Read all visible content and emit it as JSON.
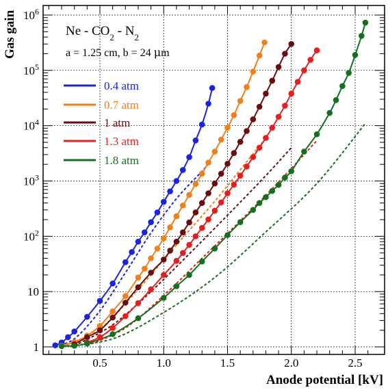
{
  "chart_data": {
    "type": "line",
    "title": "",
    "xlabel": "Anode potential [kV]",
    "ylabel": "Gas gain",
    "xlim": [
      0.05,
      2.65
    ],
    "ylim": [
      0.85,
      1300000
    ],
    "yscale": "log",
    "grid": true,
    "legend_position": "top-left",
    "x_ticks": [
      0.5,
      1.0,
      1.5,
      2.0,
      2.5
    ],
    "x_tick_labels": [
      "0.5",
      "1.0",
      "1.5",
      "2.0",
      "2.5"
    ],
    "y_ticks": [
      1,
      10,
      100,
      1000,
      10000,
      100000,
      1000000
    ],
    "y_tick_labels": [
      {
        "base": "1",
        "exp": ""
      },
      {
        "base": "10",
        "exp": ""
      },
      {
        "base": "10",
        "exp": "2"
      },
      {
        "base": "10",
        "exp": "3"
      },
      {
        "base": "10",
        "exp": "4"
      },
      {
        "base": "10",
        "exp": "5"
      },
      {
        "base": "10",
        "exp": "6"
      }
    ],
    "annotations": {
      "gas": {
        "pre": "Ne - CO",
        "sub1": "2",
        "mid": " - N",
        "sub2": "2"
      },
      "geometry": {
        "pre": "a = 1.25 cm, b = 24 ",
        "mu": "μ",
        "post": "m"
      }
    },
    "series": [
      {
        "name": "0.4 atm",
        "color": "#1a24e0",
        "x": [
          0.15,
          0.2,
          0.25,
          0.3,
          0.4,
          0.5,
          0.6,
          0.7,
          0.75,
          0.8,
          0.85,
          0.9,
          0.95,
          1.0,
          1.05,
          1.1,
          1.15,
          1.2,
          1.25,
          1.3,
          1.35,
          1.38
        ],
        "y": [
          1.07,
          1.2,
          1.5,
          1.9,
          3.5,
          6.8,
          14,
          34,
          52,
          80,
          118,
          180,
          270,
          420,
          650,
          1000,
          1580,
          2700,
          5400,
          10500,
          25000,
          48000
        ],
        "model_x": [
          0.15,
          0.3,
          0.5,
          0.7,
          0.9,
          1.1,
          1.3,
          1.37
        ],
        "model_y": [
          1.05,
          1.4,
          4.5,
          22,
          115,
          480,
          1500,
          2300
        ]
      },
      {
        "name": "0.7 atm",
        "color": "#f07f1c",
        "x": [
          0.2,
          0.3,
          0.4,
          0.5,
          0.6,
          0.7,
          0.8,
          0.85,
          0.9,
          0.95,
          1.0,
          1.05,
          1.1,
          1.15,
          1.2,
          1.25,
          1.3,
          1.35,
          1.4,
          1.45,
          1.5,
          1.55,
          1.6,
          1.65,
          1.7,
          1.75,
          1.79
        ],
        "y": [
          1.05,
          1.22,
          1.6,
          2.4,
          4.4,
          8.3,
          18,
          26,
          40,
          60,
          92,
          145,
          230,
          360,
          560,
          880,
          1350,
          2150,
          3400,
          5600,
          9200,
          15500,
          28000,
          50000,
          95000,
          185000,
          320000
        ],
        "model_x": [
          0.2,
          0.5,
          0.8,
          1.1,
          1.4,
          1.6,
          1.79
        ],
        "model_y": [
          1.05,
          2.1,
          11,
          70,
          430,
          1600,
          5600
        ]
      },
      {
        "name": "1 atm",
        "color": "#6b0d0d",
        "x": [
          0.3,
          0.4,
          0.5,
          0.6,
          0.7,
          0.8,
          0.9,
          1.0,
          1.05,
          1.1,
          1.15,
          1.2,
          1.25,
          1.3,
          1.35,
          1.4,
          1.45,
          1.5,
          1.55,
          1.6,
          1.65,
          1.7,
          1.75,
          1.8,
          1.85,
          1.9,
          1.95,
          2.0
        ],
        "y": [
          1.12,
          1.5,
          2.0,
          3.4,
          6.3,
          12,
          22,
          38,
          55,
          80,
          118,
          178,
          270,
          400,
          600,
          900,
          1350,
          2050,
          3200,
          5100,
          8000,
          13000,
          22000,
          38000,
          65000,
          115000,
          200000,
          300000
        ],
        "model_x": [
          0.3,
          0.6,
          0.9,
          1.2,
          1.5,
          1.8,
          2.0
        ],
        "model_y": [
          1.05,
          2.5,
          10,
          48,
          240,
          1250,
          4000
        ]
      },
      {
        "name": "1.3 atm",
        "color": "#e81e1e",
        "x": [
          0.4,
          0.5,
          0.6,
          0.7,
          0.8,
          0.9,
          1.0,
          1.1,
          1.15,
          1.2,
          1.25,
          1.3,
          1.35,
          1.4,
          1.45,
          1.5,
          1.55,
          1.6,
          1.65,
          1.7,
          1.75,
          1.8,
          1.85,
          1.9,
          1.95,
          2.0,
          2.05,
          2.1,
          2.15,
          2.2
        ],
        "y": [
          1.2,
          1.5,
          2.2,
          3.6,
          6.2,
          11,
          20,
          36,
          50,
          70,
          100,
          142,
          202,
          290,
          410,
          600,
          860,
          1250,
          1830,
          2700,
          4000,
          6000,
          9200,
          14500,
          23000,
          38000,
          62000,
          100000,
          155000,
          230000
        ],
        "model_x": [
          0.4,
          0.7,
          1.0,
          1.3,
          1.6,
          1.9,
          2.2
        ],
        "model_y": [
          1.05,
          2.2,
          8.5,
          40,
          190,
          950,
          5400
        ]
      },
      {
        "name": "1.8 atm",
        "color": "#14701e",
        "x": [
          0.2,
          0.3,
          0.4,
          0.6,
          0.8,
          1.0,
          1.1,
          1.2,
          1.3,
          1.4,
          1.5,
          1.6,
          1.7,
          1.75,
          1.8,
          1.85,
          1.9,
          1.95,
          2.0,
          2.1,
          2.2,
          2.3,
          2.35,
          2.4,
          2.45,
          2.5,
          2.55,
          2.58
        ],
        "y": [
          1.03,
          1.05,
          1.15,
          1.7,
          3.3,
          7.7,
          12.5,
          20,
          35,
          60,
          105,
          180,
          300,
          400,
          510,
          660,
          850,
          1150,
          1500,
          3400,
          7000,
          17000,
          29000,
          52000,
          90000,
          190000,
          420000,
          730000
        ],
        "model_x": [
          0.2,
          0.6,
          1.0,
          1.4,
          1.8,
          2.2,
          2.58
        ],
        "model_y": [
          1.02,
          1.4,
          4.2,
          18,
          120,
          900,
          11000
        ]
      }
    ]
  }
}
